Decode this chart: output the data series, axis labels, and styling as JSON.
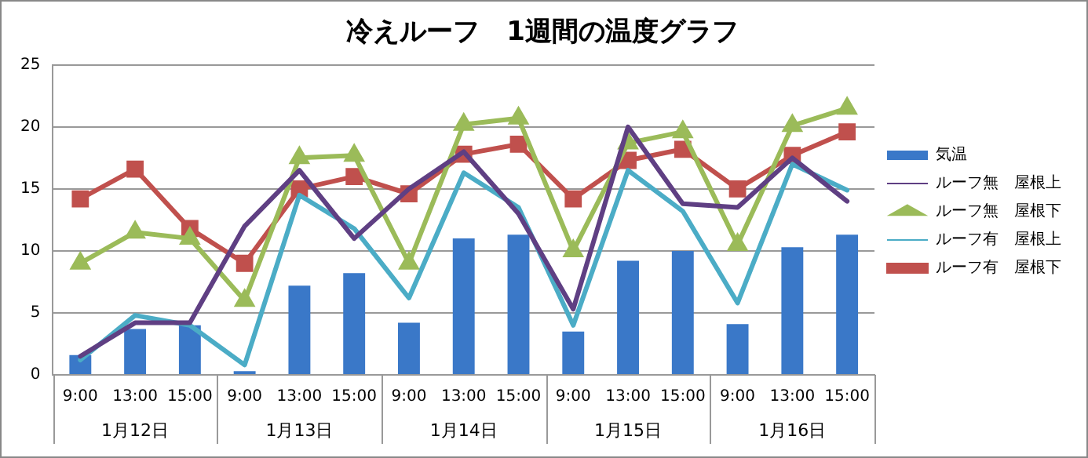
{
  "chart_data": {
    "type": "bar",
    "title": "冷えルーフ　1週間の温度グラフ",
    "categories": [
      "9:00",
      "13:00",
      "15:00",
      "9:00",
      "13:00",
      "15:00",
      "9:00",
      "13:00",
      "15:00",
      "9:00",
      "13:00",
      "15:00",
      "9:00",
      "13:00",
      "15:00"
    ],
    "annotations": [
      "1月12日",
      "1月13日",
      "1月14日",
      "1月15日",
      "1月16日"
    ],
    "series": [
      {
        "name": "気温",
        "color": "#3a78c8",
        "values": [
          1.6,
          3.7,
          4.0,
          0.3,
          7.2,
          8.2,
          4.2,
          11.0,
          11.3,
          3.5,
          9.2,
          10.0,
          4.1,
          10.3,
          11.3
        ]
      },
      {
        "name": "ルーフ無　屋根上",
        "type": "line",
        "color": "#5f3f83",
        "marker": "none",
        "values": [
          1.5,
          4.2,
          4.2,
          12,
          16.5,
          11,
          15,
          18,
          13,
          5.3,
          20,
          13.8,
          13.5,
          17.5,
          14
        ]
      },
      {
        "name": "ルーフ無　屋根下",
        "type": "line",
        "color": "#9bbb59",
        "marker": "triangle",
        "values": [
          9,
          11.5,
          11,
          6,
          17.5,
          17.7,
          9,
          20.2,
          20.7,
          10,
          18.7,
          19.6,
          10.5,
          20.1,
          21.5
        ]
      },
      {
        "name": "ルーフ有　屋根上",
        "type": "line",
        "color": "#4bacc6",
        "marker": "none",
        "values": [
          1.2,
          4.8,
          4,
          0.8,
          14.5,
          11.8,
          6.2,
          16.3,
          13.5,
          4,
          16.5,
          13.2,
          5.8,
          17,
          14.9
        ]
      },
      {
        "name": "ルーフ有　屋根下",
        "type": "line",
        "color": "#c0504d",
        "marker": "square",
        "values": [
          14.2,
          16.6,
          11.8,
          9,
          15,
          16,
          14.6,
          17.8,
          18.6,
          14.2,
          17.3,
          18.2,
          15,
          17.7,
          19.6
        ]
      }
    ],
    "ylim": [
      0,
      25
    ],
    "yticks": [
      0,
      5,
      10,
      15,
      20,
      25
    ],
    "grid": "y",
    "legend": "right"
  }
}
